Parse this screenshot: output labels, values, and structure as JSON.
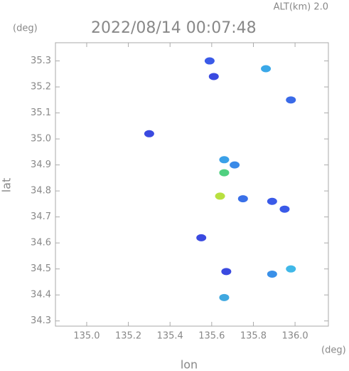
{
  "chart_data": {
    "type": "scatter",
    "annotation": "ALT(km)  2.0",
    "title": "2022/08/14 00:07:48",
    "y_unit": "(deg)",
    "x_unit": "(deg)",
    "xlabel": "lon",
    "ylabel": "lat",
    "xlim": [
      134.85,
      136.16
    ],
    "ylim": [
      34.28,
      35.37
    ],
    "xticks": [
      {
        "value": 135.0,
        "label": "135.0"
      },
      135.2,
      135.4,
      135.6,
      135.8,
      {
        "value": 136.0,
        "label": "136.0"
      }
    ],
    "yticks": [
      34.3,
      34.4,
      34.5,
      34.6,
      34.7,
      34.8,
      34.9,
      {
        "value": 35.0,
        "label": "35.0"
      },
      35.1,
      35.2,
      35.3
    ],
    "x": [
      135.59,
      135.61,
      135.86,
      135.98,
      135.3,
      135.66,
      135.71,
      135.66,
      135.64,
      135.75,
      135.89,
      135.95,
      135.89,
      135.98,
      135.66,
      135.67,
      135.55
    ],
    "values": [
      35.3,
      35.24,
      35.27,
      35.15,
      35.02,
      34.92,
      34.9,
      34.87,
      34.78,
      34.77,
      34.76,
      34.73,
      34.48,
      34.5,
      34.39,
      34.49,
      34.62
    ],
    "colors": [
      "#3a5ae8",
      "#3a4ae0",
      "#3aa8e8",
      "#3a6ae8",
      "#3a4ae0",
      "#3aa0e8",
      "#3a8ae8",
      "#50d080",
      "#b8e040",
      "#3a70e8",
      "#3a5ae8",
      "#3a5ae8",
      "#3a90e8",
      "#40b8e8",
      "#40a8e0",
      "#3a4ae0",
      "#3a4ae0"
    ]
  }
}
